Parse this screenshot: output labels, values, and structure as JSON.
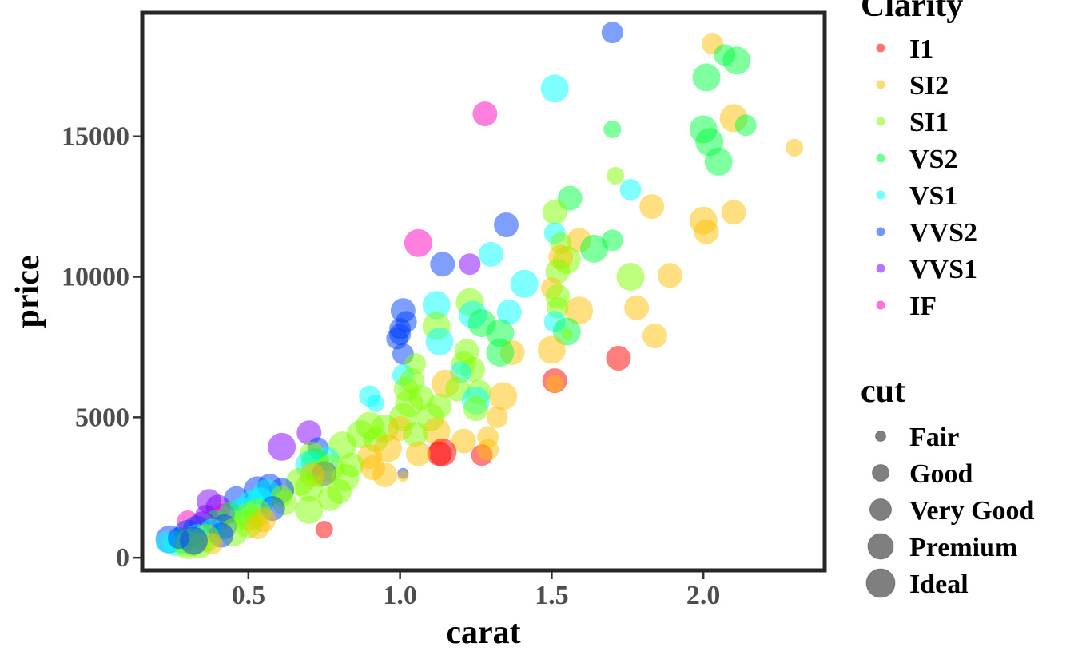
{
  "chart_data": {
    "type": "scatter",
    "title": "",
    "xlabel": "carat",
    "ylabel": "price",
    "xlim": [
      0.15,
      2.4
    ],
    "ylim": [
      -450,
      19400
    ],
    "x_ticks": [
      0.5,
      1.0,
      1.5,
      2.0
    ],
    "x_tick_labels": [
      "0.5",
      "1.0",
      "1.5",
      "2.0"
    ],
    "y_ticks": [
      0,
      5000,
      10000,
      15000
    ],
    "y_tick_labels": [
      "0",
      "5000",
      "10000",
      "15000"
    ],
    "grid": false,
    "legend_position": "right",
    "color_legend": {
      "title": "Clarity",
      "entries": [
        {
          "label": "I1",
          "color": "#ff0000"
        },
        {
          "label": "SI2",
          "color": "#ffbf00"
        },
        {
          "label": "SI1",
          "color": "#80ff00"
        },
        {
          "label": "VS2",
          "color": "#00ff40"
        },
        {
          "label": "VS1",
          "color": "#00ffff"
        },
        {
          "label": "VVS2",
          "color": "#0040ff"
        },
        {
          "label": "VVS1",
          "color": "#7f00ff"
        },
        {
          "label": "IF",
          "color": "#ff00bf"
        }
      ]
    },
    "size_legend": {
      "title": "cut",
      "entries": [
        {
          "label": "Fair",
          "level": 1
        },
        {
          "label": "Good",
          "level": 2
        },
        {
          "label": "Very Good",
          "level": 3
        },
        {
          "label": "Premium",
          "level": 4
        },
        {
          "label": "Ideal",
          "level": 5
        }
      ]
    },
    "points": [
      {
        "x": 1.7,
        "y": 18700,
        "clarity": "VVS2",
        "cut": 3
      },
      {
        "x": 2.03,
        "y": 18300,
        "clarity": "SI2",
        "cut": 3
      },
      {
        "x": 2.07,
        "y": 17900,
        "clarity": "VS2",
        "cut": 3
      },
      {
        "x": 2.11,
        "y": 17700,
        "clarity": "VS2",
        "cut": 5
      },
      {
        "x": 2.01,
        "y": 17100,
        "clarity": "VS2",
        "cut": 5
      },
      {
        "x": 1.51,
        "y": 16700,
        "clarity": "VS1",
        "cut": 5
      },
      {
        "x": 1.28,
        "y": 15800,
        "clarity": "IF",
        "cut": 4
      },
      {
        "x": 2.1,
        "y": 15650,
        "clarity": "SI2",
        "cut": 5
      },
      {
        "x": 2.0,
        "y": 15250,
        "clarity": "VS2",
        "cut": 5
      },
      {
        "x": 1.7,
        "y": 15250,
        "clarity": "VS2",
        "cut": 2
      },
      {
        "x": 2.14,
        "y": 15400,
        "clarity": "VS2",
        "cut": 3
      },
      {
        "x": 2.02,
        "y": 14800,
        "clarity": "VS2",
        "cut": 5
      },
      {
        "x": 2.3,
        "y": 14600,
        "clarity": "SI2",
        "cut": 2
      },
      {
        "x": 2.05,
        "y": 14100,
        "clarity": "VS2",
        "cut": 5
      },
      {
        "x": 1.71,
        "y": 13600,
        "clarity": "SI1",
        "cut": 2
      },
      {
        "x": 1.76,
        "y": 13100,
        "clarity": "VS1",
        "cut": 3
      },
      {
        "x": 1.56,
        "y": 12800,
        "clarity": "VS2",
        "cut": 4
      },
      {
        "x": 1.83,
        "y": 12500,
        "clarity": "SI2",
        "cut": 4
      },
      {
        "x": 1.51,
        "y": 12300,
        "clarity": "SI1",
        "cut": 4
      },
      {
        "x": 2.1,
        "y": 12300,
        "clarity": "SI2",
        "cut": 4
      },
      {
        "x": 2.0,
        "y": 12000,
        "clarity": "SI2",
        "cut": 5
      },
      {
        "x": 2.01,
        "y": 11600,
        "clarity": "SI2",
        "cut": 4
      },
      {
        "x": 1.35,
        "y": 11850,
        "clarity": "VVS2",
        "cut": 4
      },
      {
        "x": 1.51,
        "y": 11550,
        "clarity": "VS1",
        "cut": 3
      },
      {
        "x": 1.59,
        "y": 11300,
        "clarity": "SI2",
        "cut": 4
      },
      {
        "x": 1.53,
        "y": 11200,
        "clarity": "SI1",
        "cut": 3
      },
      {
        "x": 1.06,
        "y": 11200,
        "clarity": "IF",
        "cut": 5
      },
      {
        "x": 1.7,
        "y": 11300,
        "clarity": "VS2",
        "cut": 3
      },
      {
        "x": 1.64,
        "y": 11000,
        "clarity": "VS2",
        "cut": 5
      },
      {
        "x": 1.3,
        "y": 10800,
        "clarity": "VS1",
        "cut": 4
      },
      {
        "x": 1.55,
        "y": 10600,
        "clarity": "SI1",
        "cut": 5
      },
      {
        "x": 1.53,
        "y": 10700,
        "clarity": "SI2",
        "cut": 4
      },
      {
        "x": 1.14,
        "y": 10450,
        "clarity": "VVS2",
        "cut": 4
      },
      {
        "x": 1.23,
        "y": 10450,
        "clarity": "VVS1",
        "cut": 3
      },
      {
        "x": 1.52,
        "y": 10200,
        "clarity": "SI1",
        "cut": 4
      },
      {
        "x": 1.76,
        "y": 10000,
        "clarity": "SI1",
        "cut": 5
      },
      {
        "x": 1.89,
        "y": 10050,
        "clarity": "SI2",
        "cut": 4
      },
      {
        "x": 1.41,
        "y": 9750,
        "clarity": "VS1",
        "cut": 5
      },
      {
        "x": 1.5,
        "y": 9600,
        "clarity": "SI2",
        "cut": 3
      },
      {
        "x": 1.52,
        "y": 9300,
        "clarity": "SI1",
        "cut": 4
      },
      {
        "x": 1.23,
        "y": 9100,
        "clarity": "SI1",
        "cut": 5
      },
      {
        "x": 1.12,
        "y": 9000,
        "clarity": "VS1",
        "cut": 5
      },
      {
        "x": 1.52,
        "y": 8900,
        "clarity": "SI1",
        "cut": 3
      },
      {
        "x": 1.59,
        "y": 8800,
        "clarity": "SI2",
        "cut": 5
      },
      {
        "x": 1.78,
        "y": 8900,
        "clarity": "SI2",
        "cut": 4
      },
      {
        "x": 1.36,
        "y": 8750,
        "clarity": "VS1",
        "cut": 4
      },
      {
        "x": 1.24,
        "y": 8650,
        "clarity": "VS1",
        "cut": 5
      },
      {
        "x": 1.01,
        "y": 8800,
        "clarity": "VVS2",
        "cut": 4
      },
      {
        "x": 1.02,
        "y": 8400,
        "clarity": "VVS2",
        "cut": 3
      },
      {
        "x": 1.51,
        "y": 8400,
        "clarity": "VS1",
        "cut": 3
      },
      {
        "x": 1.27,
        "y": 8350,
        "clarity": "VS2",
        "cut": 5
      },
      {
        "x": 1.12,
        "y": 8250,
        "clarity": "SI1",
        "cut": 5
      },
      {
        "x": 1.0,
        "y": 8150,
        "clarity": "VVS2",
        "cut": 3
      },
      {
        "x": 1.0,
        "y": 7950,
        "clarity": "VVS2",
        "cut": 3
      },
      {
        "x": 1.55,
        "y": 8050,
        "clarity": "VS2",
        "cut": 5
      },
      {
        "x": 1.84,
        "y": 7900,
        "clarity": "SI2",
        "cut": 4
      },
      {
        "x": 1.33,
        "y": 8000,
        "clarity": "VS2",
        "cut": 5
      },
      {
        "x": 0.99,
        "y": 7800,
        "clarity": "VVS2",
        "cut": 3
      },
      {
        "x": 1.13,
        "y": 7700,
        "clarity": "VS1",
        "cut": 5
      },
      {
        "x": 1.55,
        "y": 7950,
        "clarity": "SI1",
        "cut": 1
      },
      {
        "x": 1.5,
        "y": 7400,
        "clarity": "SI2",
        "cut": 5
      },
      {
        "x": 1.37,
        "y": 7300,
        "clarity": "SI2",
        "cut": 4
      },
      {
        "x": 1.22,
        "y": 7350,
        "clarity": "SI1",
        "cut": 4
      },
      {
        "x": 1.01,
        "y": 7250,
        "clarity": "VVS2",
        "cut": 3
      },
      {
        "x": 1.33,
        "y": 7300,
        "clarity": "VS2",
        "cut": 5
      },
      {
        "x": 1.72,
        "y": 7100,
        "clarity": "I1",
        "cut": 4
      },
      {
        "x": 1.21,
        "y": 6900,
        "clarity": "SI1",
        "cut": 4
      },
      {
        "x": 1.05,
        "y": 6900,
        "clarity": "SI1",
        "cut": 3
      },
      {
        "x": 1.24,
        "y": 6700,
        "clarity": "SI1",
        "cut": 4
      },
      {
        "x": 1.2,
        "y": 6600,
        "clarity": "VS1",
        "cut": 3
      },
      {
        "x": 1.01,
        "y": 6500,
        "clarity": "VS1",
        "cut": 3
      },
      {
        "x": 1.51,
        "y": 6300,
        "clarity": "I1",
        "cut": 4
      },
      {
        "x": 1.51,
        "y": 6200,
        "clarity": "SI2",
        "cut": 2
      },
      {
        "x": 1.04,
        "y": 6300,
        "clarity": "SI1",
        "cut": 4
      },
      {
        "x": 1.15,
        "y": 6200,
        "clarity": "SI2",
        "cut": 5
      },
      {
        "x": 1.19,
        "y": 6000,
        "clarity": "SI1",
        "cut": 4
      },
      {
        "x": 1.02,
        "y": 6000,
        "clarity": "SI1",
        "cut": 4
      },
      {
        "x": 1.26,
        "y": 5900,
        "clarity": "SI1",
        "cut": 4
      },
      {
        "x": 1.34,
        "y": 5750,
        "clarity": "SI2",
        "cut": 5
      },
      {
        "x": 0.9,
        "y": 5750,
        "clarity": "VS1",
        "cut": 3
      },
      {
        "x": 1.07,
        "y": 5700,
        "clarity": "SI1",
        "cut": 4
      },
      {
        "x": 1.25,
        "y": 5600,
        "clarity": "VS1",
        "cut": 5
      },
      {
        "x": 0.92,
        "y": 5500,
        "clarity": "VS1",
        "cut": 2
      },
      {
        "x": 1.03,
        "y": 5500,
        "clarity": "SI1",
        "cut": 5
      },
      {
        "x": 1.13,
        "y": 5400,
        "clarity": "SI1",
        "cut": 4
      },
      {
        "x": 1.25,
        "y": 5300,
        "clarity": "SI1",
        "cut": 4
      },
      {
        "x": 1.32,
        "y": 5000,
        "clarity": "SI2",
        "cut": 3
      },
      {
        "x": 1.1,
        "y": 5000,
        "clarity": "SI1",
        "cut": 5
      },
      {
        "x": 1.01,
        "y": 5000,
        "clarity": "SI1",
        "cut": 5
      },
      {
        "x": 0.9,
        "y": 4700,
        "clarity": "SI1",
        "cut": 5
      },
      {
        "x": 0.95,
        "y": 4600,
        "clarity": "SI1",
        "cut": 5
      },
      {
        "x": 1.0,
        "y": 4600,
        "clarity": "SI2",
        "cut": 4
      },
      {
        "x": 1.12,
        "y": 4500,
        "clarity": "SI2",
        "cut": 5
      },
      {
        "x": 0.87,
        "y": 4400,
        "clarity": "SI1",
        "cut": 5
      },
      {
        "x": 1.05,
        "y": 4400,
        "clarity": "SI1",
        "cut": 4
      },
      {
        "x": 0.7,
        "y": 4450,
        "clarity": "VVS1",
        "cut": 4
      },
      {
        "x": 1.29,
        "y": 4300,
        "clarity": "SI2",
        "cut": 3
      },
      {
        "x": 1.21,
        "y": 4150,
        "clarity": "SI2",
        "cut": 4
      },
      {
        "x": 0.92,
        "y": 4200,
        "clarity": "SI1",
        "cut": 4
      },
      {
        "x": 0.61,
        "y": 3950,
        "clarity": "VVS1",
        "cut": 5
      },
      {
        "x": 0.81,
        "y": 4000,
        "clarity": "SI1",
        "cut": 5
      },
      {
        "x": 0.73,
        "y": 3900,
        "clarity": "VVS2",
        "cut": 3
      },
      {
        "x": 0.96,
        "y": 3900,
        "clarity": "SI2",
        "cut": 5
      },
      {
        "x": 1.14,
        "y": 3750,
        "clarity": "I1",
        "cut": 5
      },
      {
        "x": 1.13,
        "y": 3700,
        "clarity": "I1",
        "cut": 4
      },
      {
        "x": 1.27,
        "y": 3650,
        "clarity": "I1",
        "cut": 3
      },
      {
        "x": 1.29,
        "y": 3850,
        "clarity": "SI2",
        "cut": 3
      },
      {
        "x": 1.06,
        "y": 3700,
        "clarity": "SI2",
        "cut": 4
      },
      {
        "x": 0.71,
        "y": 3700,
        "clarity": "SI1",
        "cut": 4
      },
      {
        "x": 0.9,
        "y": 3600,
        "clarity": "SI2",
        "cut": 4
      },
      {
        "x": 0.76,
        "y": 3500,
        "clarity": "VS1",
        "cut": 4
      },
      {
        "x": 0.72,
        "y": 3400,
        "clarity": "VS2",
        "cut": 5
      },
      {
        "x": 0.84,
        "y": 3300,
        "clarity": "SI1",
        "cut": 4
      },
      {
        "x": 0.7,
        "y": 3300,
        "clarity": "VS1",
        "cut": 5
      },
      {
        "x": 0.77,
        "y": 3200,
        "clarity": "SI1",
        "cut": 5
      },
      {
        "x": 0.91,
        "y": 3200,
        "clarity": "SI2",
        "cut": 4
      },
      {
        "x": 0.75,
        "y": 3000,
        "clarity": "VVS1",
        "cut": 4
      },
      {
        "x": 0.74,
        "y": 3000,
        "clarity": "SI1",
        "cut": 5
      },
      {
        "x": 0.71,
        "y": 2950,
        "clarity": "SI2",
        "cut": 4
      },
      {
        "x": 1.01,
        "y": 3000,
        "clarity": "VVS2",
        "cut": 1
      },
      {
        "x": 1.01,
        "y": 2900,
        "clarity": "SI2",
        "cut": 1
      },
      {
        "x": 0.95,
        "y": 2950,
        "clarity": "SI2",
        "cut": 4
      },
      {
        "x": 0.82,
        "y": 2850,
        "clarity": "SI1",
        "cut": 5
      },
      {
        "x": 0.67,
        "y": 2700,
        "clarity": "SI1",
        "cut": 5
      },
      {
        "x": 0.7,
        "y": 2500,
        "clarity": "SI1",
        "cut": 5
      },
      {
        "x": 0.57,
        "y": 2550,
        "clarity": "VVS2",
        "cut": 4
      },
      {
        "x": 0.53,
        "y": 2400,
        "clarity": "VVS2",
        "cut": 5
      },
      {
        "x": 0.61,
        "y": 2400,
        "clarity": "VVS2",
        "cut": 4
      },
      {
        "x": 0.8,
        "y": 2350,
        "clarity": "SI1",
        "cut": 4
      },
      {
        "x": 0.56,
        "y": 2300,
        "clarity": "VS1",
        "cut": 5
      },
      {
        "x": 0.46,
        "y": 2100,
        "clarity": "VVS2",
        "cut": 4
      },
      {
        "x": 0.61,
        "y": 2200,
        "clarity": "SI1",
        "cut": 3
      },
      {
        "x": 0.77,
        "y": 2100,
        "clarity": "SI1",
        "cut": 4
      },
      {
        "x": 0.54,
        "y": 2000,
        "clarity": "VS1",
        "cut": 5
      },
      {
        "x": 0.37,
        "y": 2000,
        "clarity": "VVS1",
        "cut": 4
      },
      {
        "x": 0.51,
        "y": 1900,
        "clarity": "VS1",
        "cut": 5
      },
      {
        "x": 0.62,
        "y": 1950,
        "clarity": "SI1",
        "cut": 4
      },
      {
        "x": 0.4,
        "y": 1800,
        "clarity": "VVS1",
        "cut": 4
      },
      {
        "x": 0.58,
        "y": 1750,
        "clarity": "VVS2",
        "cut": 4
      },
      {
        "x": 0.7,
        "y": 1700,
        "clarity": "SI1",
        "cut": 5
      },
      {
        "x": 0.48,
        "y": 1650,
        "clarity": "VS1",
        "cut": 5
      },
      {
        "x": 0.53,
        "y": 1600,
        "clarity": "SI1",
        "cut": 5
      },
      {
        "x": 0.42,
        "y": 1550,
        "clarity": "IF",
        "cut": 3
      },
      {
        "x": 0.44,
        "y": 1600,
        "clarity": "VS2",
        "cut": 3
      },
      {
        "x": 0.36,
        "y": 1500,
        "clarity": "VVS1",
        "cut": 3
      },
      {
        "x": 0.5,
        "y": 1450,
        "clarity": "SI1",
        "cut": 5
      },
      {
        "x": 0.55,
        "y": 1350,
        "clarity": "SI2",
        "cut": 4
      },
      {
        "x": 0.3,
        "y": 1300,
        "clarity": "IF",
        "cut": 3
      },
      {
        "x": 0.39,
        "y": 1250,
        "clarity": "VS2",
        "cut": 4
      },
      {
        "x": 0.5,
        "y": 1200,
        "clarity": "SI1",
        "cut": 5
      },
      {
        "x": 0.35,
        "y": 1150,
        "clarity": "VVS1",
        "cut": 5
      },
      {
        "x": 0.42,
        "y": 1100,
        "clarity": "VVS2",
        "cut": 4
      },
      {
        "x": 0.53,
        "y": 1100,
        "clarity": "SI2",
        "cut": 4
      },
      {
        "x": 0.33,
        "y": 1000,
        "clarity": "VVS2",
        "cut": 5
      },
      {
        "x": 0.75,
        "y": 1000,
        "clarity": "I1",
        "cut": 2
      },
      {
        "x": 0.38,
        "y": 950,
        "clarity": "VS1",
        "cut": 4
      },
      {
        "x": 0.45,
        "y": 900,
        "clarity": "SI1",
        "cut": 5
      },
      {
        "x": 0.3,
        "y": 850,
        "clarity": "VVS2",
        "cut": 5
      },
      {
        "x": 0.41,
        "y": 800,
        "clarity": "VVS2",
        "cut": 4
      },
      {
        "x": 0.33,
        "y": 750,
        "clarity": "VS1",
        "cut": 4
      },
      {
        "x": 0.36,
        "y": 700,
        "clarity": "SI1",
        "cut": 5
      },
      {
        "x": 0.24,
        "y": 650,
        "clarity": "VVS2",
        "cut": 5
      },
      {
        "x": 0.28,
        "y": 600,
        "clarity": "VS2",
        "cut": 4
      },
      {
        "x": 0.31,
        "y": 550,
        "clarity": "SI1",
        "cut": 5
      },
      {
        "x": 0.38,
        "y": 500,
        "clarity": "SI2",
        "cut": 3
      },
      {
        "x": 0.26,
        "y": 500,
        "clarity": "VS1",
        "cut": 4
      },
      {
        "x": 0.3,
        "y": 450,
        "clarity": "SI1",
        "cut": 5
      },
      {
        "x": 0.34,
        "y": 420,
        "clarity": "SI1",
        "cut": 4
      },
      {
        "x": 0.23,
        "y": 550,
        "clarity": "VS1",
        "cut": 3
      },
      {
        "x": 0.32,
        "y": 600,
        "clarity": "VVS2",
        "cut": 5
      },
      {
        "x": 0.27,
        "y": 700,
        "clarity": "VVS2",
        "cut": 3
      }
    ]
  }
}
